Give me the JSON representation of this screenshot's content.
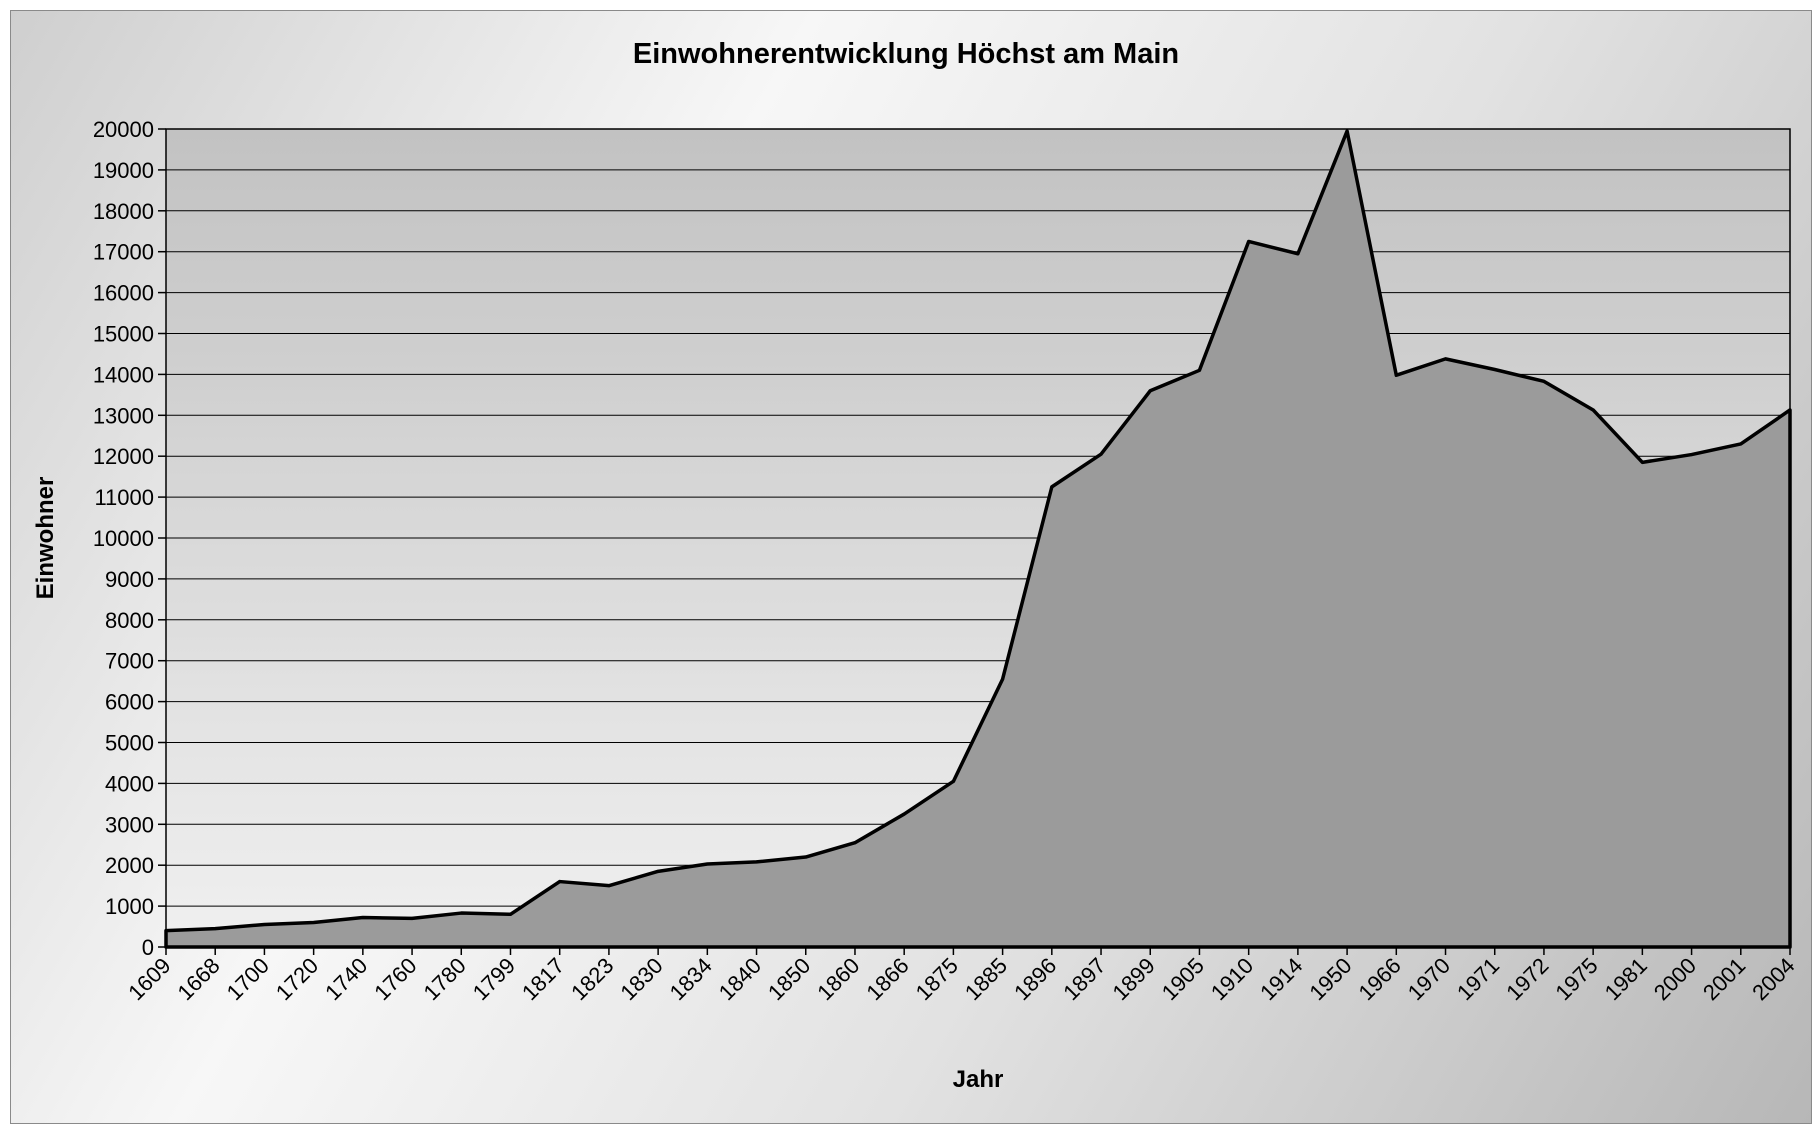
{
  "chart_data": {
    "type": "area",
    "title": "Einwohnerentwicklung Höchst am Main",
    "xlabel": "Jahr",
    "ylabel": "Einwohner",
    "ylim": [
      0,
      20000
    ],
    "yticks": [
      0,
      1000,
      2000,
      3000,
      4000,
      5000,
      6000,
      7000,
      8000,
      9000,
      10000,
      11000,
      12000,
      13000,
      14000,
      15000,
      16000,
      17000,
      18000,
      19000,
      20000
    ],
    "grid": true,
    "legend": "none",
    "categories": [
      "1609",
      "1668",
      "1700",
      "1720",
      "1740",
      "1760",
      "1780",
      "1799",
      "1817",
      "1823",
      "1830",
      "1834",
      "1840",
      "1850",
      "1860",
      "1866",
      "1875",
      "1885",
      "1896",
      "1897",
      "1899",
      "1905",
      "1910",
      "1914",
      "1950",
      "1966",
      "1970",
      "1971",
      "1972",
      "1975",
      "1981",
      "2000",
      "2001",
      "2004"
    ],
    "values": [
      400,
      450,
      550,
      600,
      720,
      700,
      830,
      800,
      1600,
      1500,
      1850,
      2030,
      2080,
      2200,
      2550,
      3250,
      4050,
      6550,
      11250,
      12050,
      13600,
      14100,
      17250,
      16950,
      19950,
      13980,
      14380,
      14120,
      13830,
      13130,
      11850,
      12040,
      12300,
      13130
    ],
    "colors": {
      "fill": "#9b9b9b",
      "line": "#000000",
      "plot_background_top": "#c2c2c2",
      "plot_background_bottom": "#f0f0f0",
      "gridline": "#000000"
    }
  }
}
